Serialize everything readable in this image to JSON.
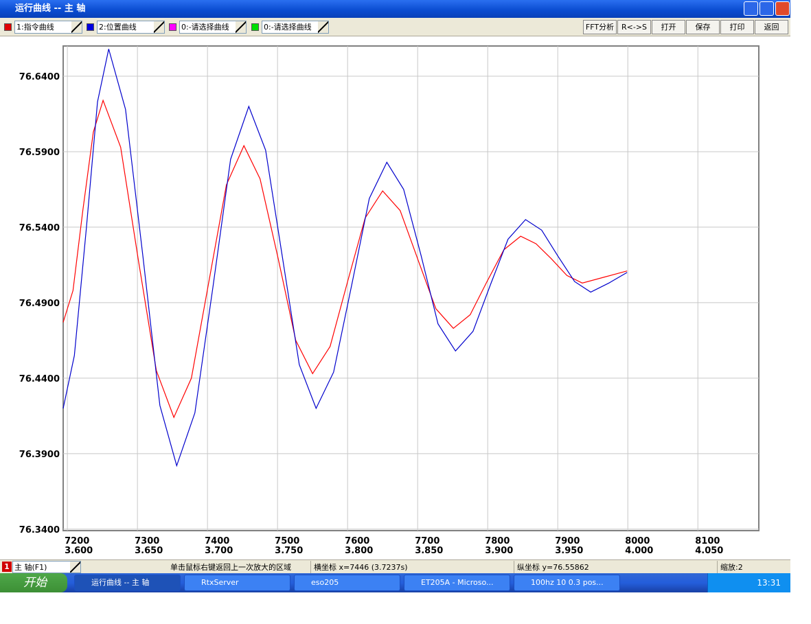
{
  "window": {
    "title": "运行曲线 -- 主  轴"
  },
  "toolbar": {
    "selectors": [
      {
        "label": "1:指令曲线",
        "color": "#e00000"
      },
      {
        "label": "2:位置曲线",
        "color": "#0000e0"
      },
      {
        "label": "0:-请选择曲线",
        "color": "#ff00ff"
      },
      {
        "label": "0:-请选择曲线",
        "color": "#00e000"
      }
    ],
    "buttons": [
      "FFT分析",
      "R<->S",
      "打开",
      "保存",
      "打印",
      "返回"
    ]
  },
  "chart_data": {
    "type": "line",
    "grid": true,
    "xlim": [
      7194,
      8187
    ],
    "xticks": [
      7200,
      7300,
      7400,
      7500,
      7600,
      7700,
      7800,
      7900,
      8000,
      8100
    ],
    "x2lim": [
      3.597,
      4.0935
    ],
    "x2ticks": [
      {
        "value": 3.6,
        "label": "3.600"
      },
      {
        "value": 3.65,
        "label": "3.650"
      },
      {
        "value": 3.7,
        "label": "3.700"
      },
      {
        "value": 3.75,
        "label": "3.750"
      },
      {
        "value": 3.8,
        "label": "3.800"
      },
      {
        "value": 3.85,
        "label": "3.850"
      },
      {
        "value": 3.9,
        "label": "3.900"
      },
      {
        "value": 3.95,
        "label": "3.950"
      },
      {
        "value": 4.0,
        "label": "4.000"
      },
      {
        "value": 4.05,
        "label": "4.050"
      }
    ],
    "ylim": [
      76.339,
      76.66
    ],
    "yticks": [
      {
        "value": 76.34,
        "label": "76.3400"
      },
      {
        "value": 76.39,
        "label": "76.3900"
      },
      {
        "value": 76.44,
        "label": "76.4400"
      },
      {
        "value": 76.49,
        "label": "76.4900"
      },
      {
        "value": 76.54,
        "label": "76.5400"
      },
      {
        "value": 76.59,
        "label": "76.5900"
      },
      {
        "value": 76.64,
        "label": "76.6400"
      }
    ],
    "series": [
      {
        "name": "1:指令曲线",
        "color": "#ff0000",
        "x": [
          7194,
          7208,
          7222,
          7237,
          7251,
          7276,
          7301,
          7327,
          7352,
          7377,
          7402,
          7427,
          7452,
          7475,
          7501,
          7526,
          7550,
          7575,
          7600,
          7625,
          7650,
          7675,
          7700,
          7726,
          7751,
          7775,
          7799,
          7823,
          7847,
          7869,
          7891,
          7913,
          7935,
          7967,
          7999
        ],
        "values": [
          76.477,
          76.498,
          76.551,
          76.603,
          76.624,
          76.593,
          76.519,
          76.445,
          76.414,
          76.44,
          76.504,
          76.568,
          76.594,
          76.572,
          76.519,
          76.465,
          76.443,
          76.461,
          76.504,
          76.546,
          76.564,
          76.551,
          76.519,
          76.486,
          76.473,
          76.482,
          76.504,
          76.525,
          76.534,
          76.529,
          76.519,
          76.508,
          76.503,
          76.507,
          76.511
        ]
      },
      {
        "name": "2:位置曲线",
        "color": "#0000cc",
        "x": [
          7194,
          7210,
          7227,
          7243,
          7259,
          7283,
          7308,
          7332,
          7356,
          7382,
          7408,
          7433,
          7459,
          7483,
          7507,
          7531,
          7555,
          7580,
          7606,
          7631,
          7656,
          7680,
          7705,
          7729,
          7754,
          7779,
          7804,
          7829,
          7854,
          7877,
          7900,
          7924,
          7947,
          7973,
          7999
        ],
        "values": [
          76.42,
          76.455,
          76.539,
          76.623,
          76.658,
          76.618,
          76.52,
          76.422,
          76.382,
          76.417,
          76.501,
          76.585,
          76.62,
          76.591,
          76.52,
          76.449,
          76.42,
          76.444,
          76.502,
          76.559,
          76.583,
          76.565,
          76.521,
          76.476,
          76.458,
          76.471,
          76.502,
          76.532,
          76.545,
          76.538,
          76.521,
          76.504,
          76.497,
          76.503,
          76.51
        ]
      }
    ]
  },
  "status": {
    "axis_select": "主  轴(F1)",
    "axis_index": "1",
    "hint": "单击鼠标右键返回上一次放大的区域",
    "x_readout": "横坐标 x=7446 (3.7237s)",
    "y_readout": "纵坐标 y=76.55862",
    "zoom": "缩放:2"
  },
  "taskbar": {
    "start": "开始",
    "tasks": [
      "运行曲线 -- 主  轴",
      "RtxServer",
      "eso205",
      "ET205A - Microso...",
      "100hz 10 0.3 pos..."
    ],
    "clock": "13:31"
  }
}
